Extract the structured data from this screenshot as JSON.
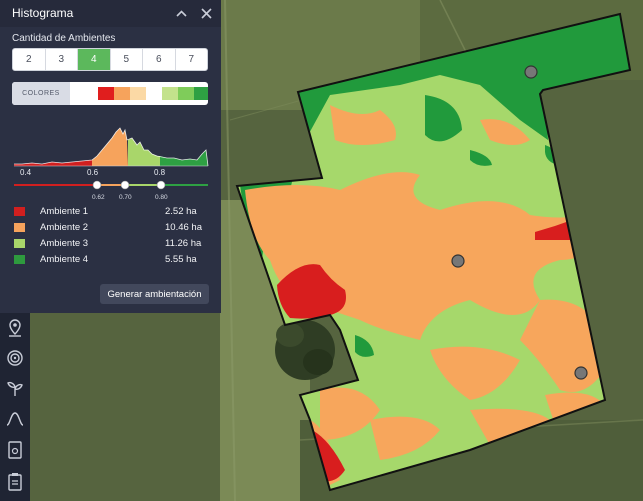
{
  "panel": {
    "title": "Histograma",
    "collapse_icon": "chevron-up-icon",
    "close_icon": "close-icon",
    "ambientes_label": "Cantidad de Ambientes",
    "ambientes_options": [
      "2",
      "3",
      "4",
      "5",
      "6",
      "7"
    ],
    "ambientes_selected": "4",
    "colors_label": "COLORES",
    "palette": [
      "#e01e1e",
      "#f6a35c",
      "#fbd9a5",
      "#ffffff",
      "#c3e28c",
      "#7fcc5a",
      "#2ea043"
    ],
    "histogram": {
      "axis_labels": [
        "0.4",
        "0.6",
        "0.8"
      ],
      "thresholds": [
        "0.62",
        "0.70",
        "0.80"
      ],
      "colors": {
        "red": "#d11f1f",
        "orange": "#f6a35c",
        "light_green": "#a9d66a",
        "green": "#2ea043"
      }
    },
    "legend": [
      {
        "name": "Ambiente 1",
        "area": "2.52 ha",
        "color": "#d11f1f"
      },
      {
        "name": "Ambiente 2",
        "area": "10.46 ha",
        "color": "#f6a35c"
      },
      {
        "name": "Ambiente 3",
        "area": "11.26 ha",
        "color": "#a9d66a"
      },
      {
        "name": "Ambiente 4",
        "area": "5.55 ha",
        "color": "#2e9a3e"
      }
    ],
    "generate_button": "Generar ambientación"
  },
  "toolbar": {
    "icons": [
      "location-pin-icon",
      "target-icon",
      "plant-icon",
      "curve-icon",
      "document-icon",
      "clipboard-icon"
    ]
  },
  "map": {
    "zone_colors": {
      "red": "#d81e1e",
      "orange": "#f7a65c",
      "light_green": "#a6d86b",
      "green": "#219a3c"
    }
  }
}
